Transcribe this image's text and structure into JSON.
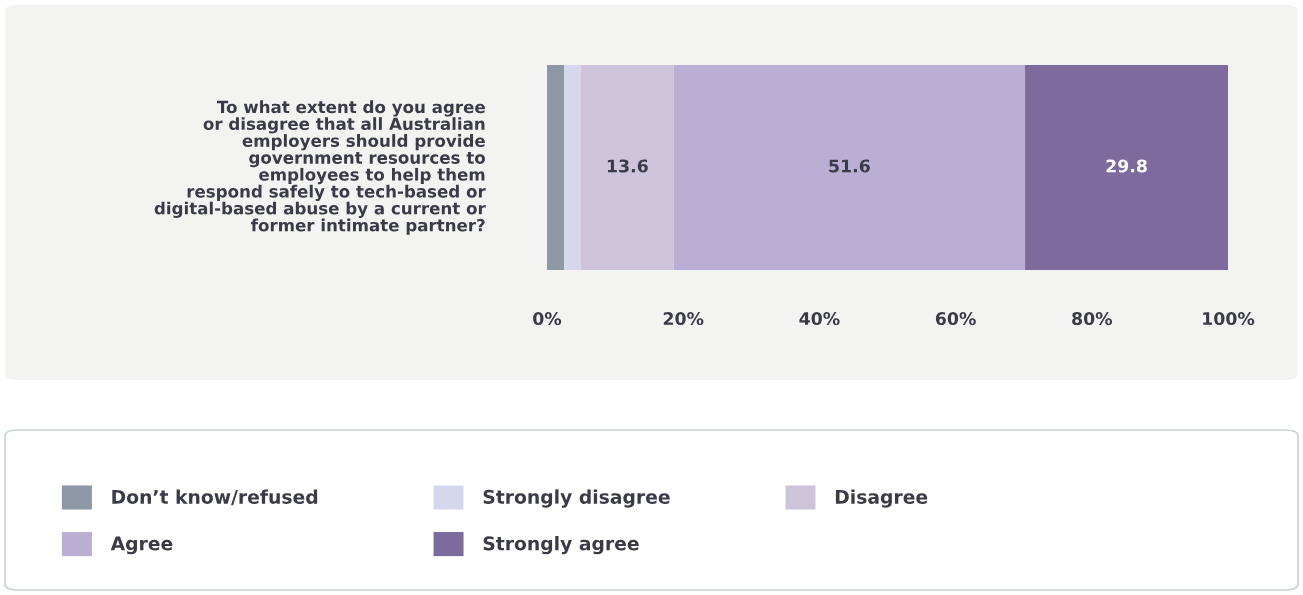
{
  "chart_data": {
    "type": "bar",
    "orientation": "horizontal",
    "stacked": true,
    "categories": [
      "To what extent do you agree\nor disagree that all Australian\nemployers should provide\ngovernment resources to\nemployees to help them\nrespond safely to tech-based or\ndigital-based abuse by a current or\nformer intimate partner?"
    ],
    "series": [
      {
        "name": "Don’t know/refused",
        "color": "#8e97a5",
        "values": [
          2.5
        ],
        "value_labels": [
          null
        ]
      },
      {
        "name": "Strongly disagree",
        "color": "#d5d8ec",
        "values": [
          2.5
        ],
        "value_labels": [
          null
        ]
      },
      {
        "name": "Disagree",
        "color": "#cdc4dc",
        "values": [
          13.6
        ],
        "value_labels": [
          "13.6"
        ]
      },
      {
        "name": "Agree",
        "color": "#bbaed4",
        "values": [
          51.6
        ],
        "value_labels": [
          "51.6"
        ]
      },
      {
        "name": "Strongly agree",
        "color": "#7e6b9e",
        "values": [
          29.8
        ],
        "value_labels": [
          "29.8"
        ]
      }
    ],
    "xlim": [
      0,
      100
    ],
    "xticks": [
      {
        "value": 0,
        "label": "0%"
      },
      {
        "value": 20,
        "label": "20%"
      },
      {
        "value": 40,
        "label": "40%"
      },
      {
        "value": 60,
        "label": "60%"
      },
      {
        "value": 80,
        "label": "80%"
      },
      {
        "value": 100,
        "label": "100%"
      }
    ],
    "grid": false,
    "legend": "bottom"
  }
}
